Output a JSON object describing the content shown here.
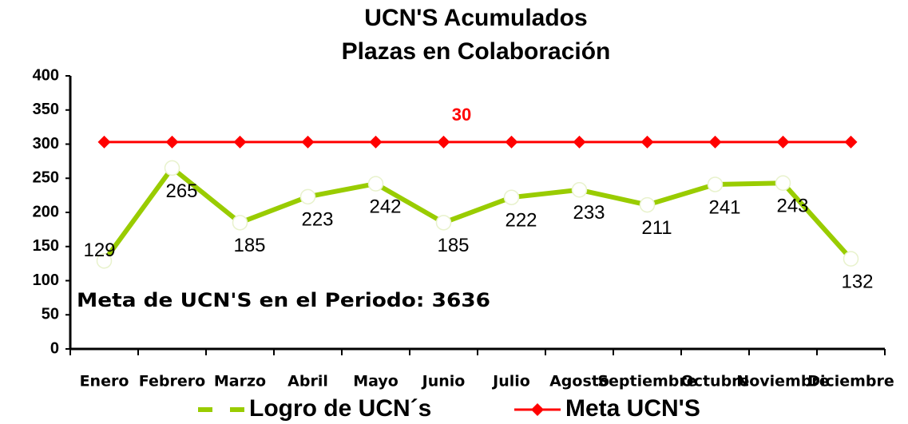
{
  "chart_data": {
    "type": "line",
    "title": "UCN'S Acumulados",
    "subtitle": "Plazas en Colaboración",
    "categories": [
      "Enero",
      "Febrero",
      "Marzo",
      "Abril",
      "Mayo",
      "Junio",
      "Julio",
      "Agosto",
      "Septiembre",
      "Octubre",
      "Noviembre",
      "Diciembre"
    ],
    "series": [
      {
        "name": "Logro de UCN´s",
        "color": "#99cc00",
        "values": [
          129,
          265,
          185,
          223,
          242,
          185,
          222,
          233,
          211,
          241,
          243,
          132
        ]
      },
      {
        "name": "Meta UCN'S",
        "color": "#ff0000",
        "values": [
          303,
          303,
          303,
          303,
          303,
          303,
          303,
          303,
          303,
          303,
          303,
          303
        ]
      }
    ],
    "annotations": [
      "30",
      "Meta de UCN'S en el Periodo: 3636"
    ],
    "ylim": [
      0,
      400
    ],
    "yticks": [
      0,
      50,
      100,
      150,
      200,
      250,
      300,
      350,
      400
    ],
    "grid": false,
    "legend": "bottom"
  }
}
